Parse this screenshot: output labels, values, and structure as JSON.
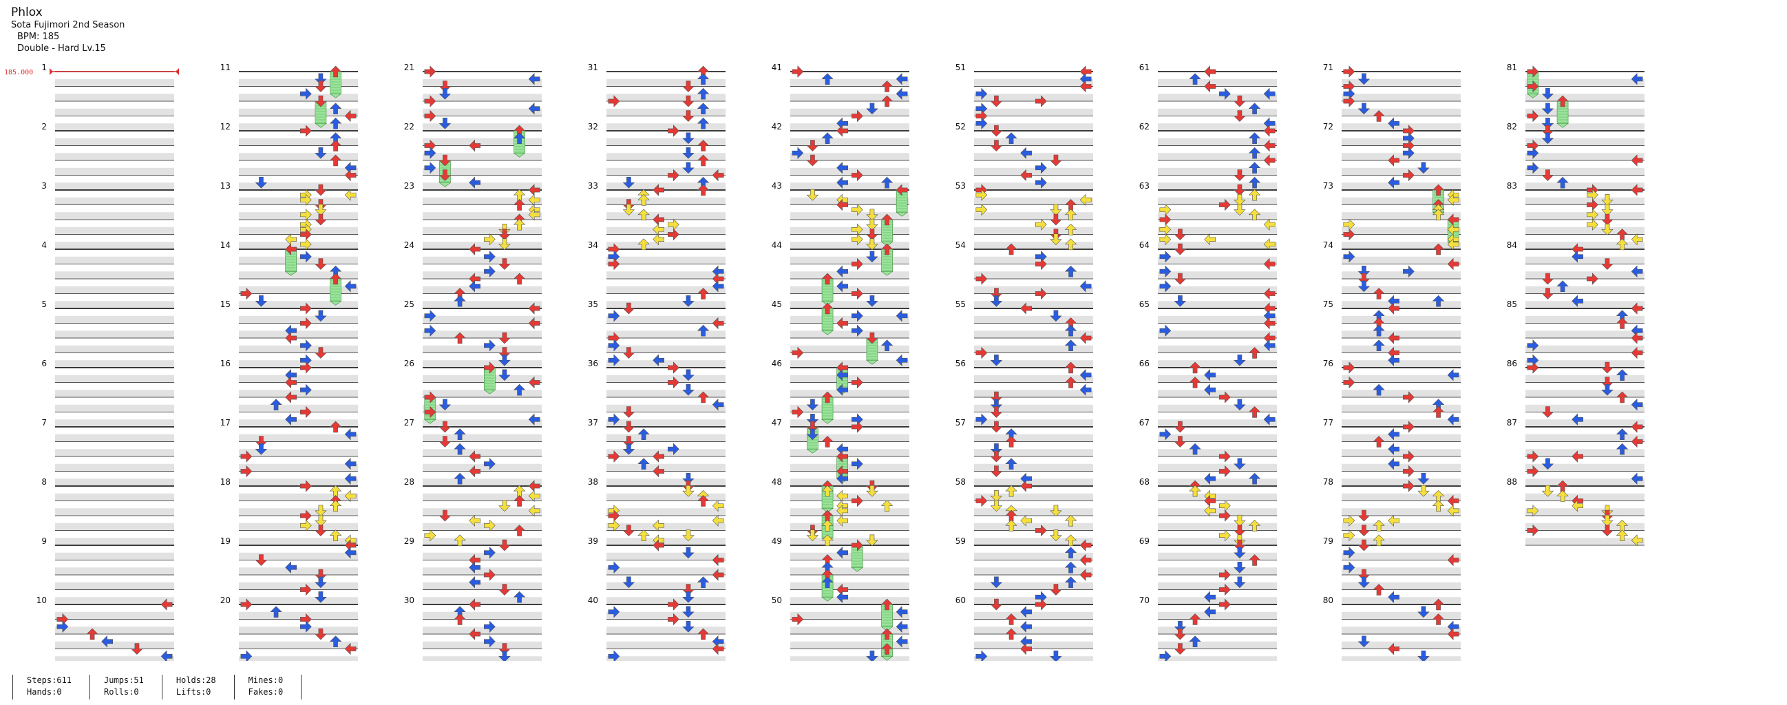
{
  "song": {
    "title": "Phlox",
    "artist": "Sota Fujimori 2nd Season",
    "bpm_label": "BPM: 185",
    "difficulty": "Double - Hard Lv.15"
  },
  "bpm_marker": {
    "label": "185.000",
    "color": "#e03030"
  },
  "layout_info": {
    "style": "double",
    "panels": 8,
    "measures_per_column": 10,
    "measure_count": 88,
    "first_number": 1
  },
  "colors": {
    "quarter": "#e53935",
    "eighth": "#2a5ce0",
    "sixteenth": "#f5df3c",
    "hold_body": "#9be39b",
    "lane_bg": "#e2e2e2"
  },
  "stats": {
    "steps": "Steps:611",
    "hands": "Hands:0",
    "jumps": "Jumps:51",
    "rolls": "Rolls:0",
    "holds": "Holds:28",
    "lifts": "Lifts:0",
    "mines": "Mines:0",
    "fakes": "Fakes:0"
  }
}
